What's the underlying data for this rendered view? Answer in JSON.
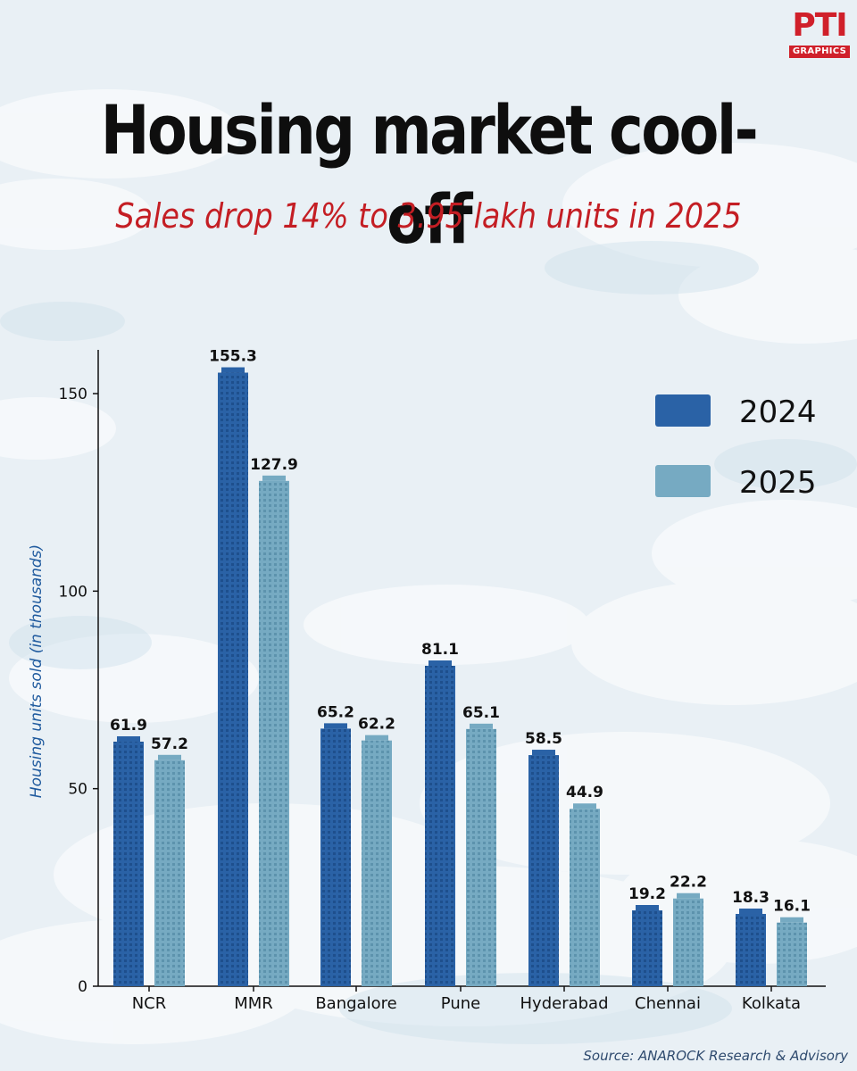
{
  "logo": {
    "top": "PTI",
    "bottom": "GRAPHICS"
  },
  "header": {
    "title": "Housing market cool-off",
    "subtitle": "Sales drop 14% to 3.95 lakh units in 2025"
  },
  "source": "Source: ANAROCK Research & Advisory",
  "colors": {
    "series_2024": "#2a62a6",
    "series_2025": "#76aac2",
    "title": "#0e0e0e",
    "subtitle": "#c41e24",
    "axis_label": "#1f5a9e"
  },
  "chart_data": {
    "type": "bar",
    "title": "Housing market cool-off",
    "subtitle": "Sales drop 14% to 3.95 lakh units in 2025",
    "xlabel": "",
    "ylabel": "Housing units sold (in thousands)",
    "categories": [
      "NCR",
      "MMR",
      "Bangalore",
      "Pune",
      "Hyderabad",
      "Chennai",
      "Kolkata"
    ],
    "series": [
      {
        "name": "2024",
        "values": [
          61.9,
          155.3,
          65.2,
          81.1,
          58.5,
          19.2,
          18.3
        ]
      },
      {
        "name": "2025",
        "values": [
          57.2,
          127.9,
          62.2,
          65.1,
          44.9,
          22.2,
          16.1
        ]
      }
    ],
    "ylim": [
      0,
      160
    ],
    "yticks": [
      0,
      50,
      100,
      150
    ],
    "legend_position": "top-right",
    "grid": false
  }
}
